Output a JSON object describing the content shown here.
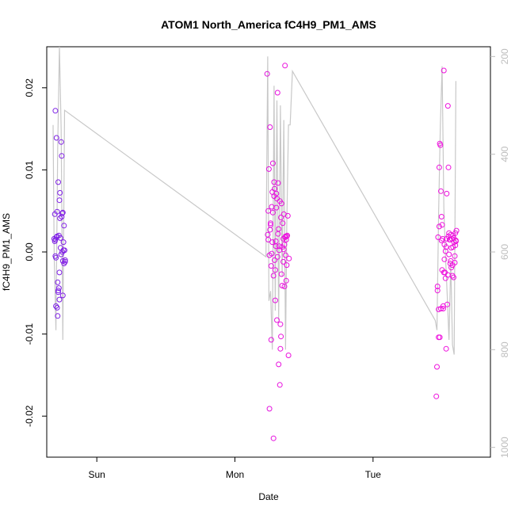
{
  "chart_data": {
    "type": "scatter",
    "title": "ATOM1 North_America fC4H9_PM1_AMS",
    "xlabel": "Date",
    "ylabel": "fC4H9_PM1_AMS",
    "x_tick_labels": [
      "Sun",
      "Mon",
      "Tue"
    ],
    "x_tick_positions_hours": [
      24,
      48,
      72
    ],
    "xlim_hours": [
      15.3,
      92.4
    ],
    "ylim": [
      -0.025,
      0.025
    ],
    "y_ticks": [
      -0.02,
      -0.01,
      0.0,
      0.01,
      0.02
    ],
    "y2_ticks": [
      200,
      400,
      600,
      800,
      1000
    ],
    "y2lim": [
      1020,
      180
    ],
    "grid": false,
    "point_colors": [
      "#7b1fe6",
      "#ee10dd"
    ],
    "line_color": "#c8c8c8",
    "series": [
      {
        "marker": "circle",
        "x_hours": [
          16.6,
          16.7,
          16.8,
          16.9,
          17.0,
          17.1,
          17.2,
          17.3,
          17.4,
          17.5,
          17.6,
          17.7,
          17.8,
          17.9,
          18.0,
          18.1,
          18.2,
          18.3,
          18.4,
          18.5,
          16.7,
          16.9,
          17.1,
          17.3,
          17.5,
          17.7,
          17.9,
          18.1,
          18.3,
          18.5,
          16.8,
          17.0,
          17.2,
          17.4,
          17.6,
          17.8,
          18.0,
          18.2,
          17.1,
          17.5,
          18.1,
          16.8,
          17.3
        ],
        "y": [
          0.0016,
          0.0046,
          0.0172,
          -0.0007,
          0.0139,
          0.0049,
          -0.0037,
          0.0085,
          0.002,
          -0.0025,
          0.0072,
          0.0017,
          0.0134,
          0.0043,
          0.0047,
          0.0048,
          0.0012,
          -0.0014,
          0.0002,
          -0.001,
          0.0013,
          -0.0066,
          0.0019,
          -0.0047,
          0.0063,
          0.0005,
          0.0117,
          -0.0053,
          0.0032,
          -0.0012,
          -0.0005,
          0.0018,
          -0.0078,
          -0.0044,
          0.0041,
          -0.0003,
          0.0,
          0.0002,
          -0.0068,
          -0.0058,
          -0.0011,
          0.0015,
          -0.0049
        ]
      },
      {
        "marker": "circle",
        "x_hours": [
          53.6,
          53.7,
          53.8,
          53.9,
          54.0,
          54.1,
          54.2,
          54.3,
          54.4,
          54.5,
          54.6,
          54.7,
          54.8,
          54.9,
          55.0,
          55.1,
          55.2,
          55.3,
          55.4,
          55.5,
          55.6,
          55.7,
          55.8,
          55.9,
          56.0,
          56.1,
          56.2,
          56.3,
          56.4,
          56.5,
          56.6,
          56.7,
          56.8,
          56.9,
          57.0,
          57.1,
          57.2,
          57.3,
          57.4,
          53.8,
          54.0,
          54.2,
          54.4,
          54.6,
          54.8,
          55.0,
          55.2,
          55.4,
          55.6,
          55.8,
          56.0,
          56.2,
          56.4,
          56.6,
          56.8,
          57.0,
          54.1,
          54.5,
          54.9,
          55.3,
          55.7,
          56.1,
          56.5,
          56.9,
          54.3,
          55.1,
          55.9,
          56.7,
          54.7,
          55.5
        ],
        "y": [
          0.0217,
          0.0021,
          0.005,
          0.0101,
          -0.0191,
          0.0152,
          0.0035,
          -0.0107,
          0.0055,
          0.0073,
          0.0108,
          -0.0227,
          0.0085,
          0.0077,
          -0.0059,
          0.0013,
          0.0071,
          -0.0083,
          0.0194,
          0.0084,
          -0.0137,
          0.0002,
          -0.0162,
          -0.0118,
          -0.0103,
          0.0059,
          0.0006,
          0.0035,
          -0.0012,
          0.0003,
          -0.0042,
          0.0227,
          0.0019,
          0.0015,
          -0.0016,
          0.002,
          0.0044,
          -0.0126,
          -0.0008,
          0.0015,
          -0.0004,
          0.0033,
          -0.0002,
          0.0048,
          0.0068,
          -0.0022,
          0.0054,
          -0.0006,
          0.0028,
          0.0062,
          0.0042,
          -0.0041,
          0.0016,
          0.0009,
          -0.0004,
          0.0019,
          0.0027,
          0.0012,
          -0.001,
          0.0065,
          0.0007,
          -0.0027,
          0.0046,
          -0.0035,
          -0.0017,
          0.0007,
          -0.0088,
          0.0018,
          -0.0029,
          0.0022
        ]
      },
      {
        "marker": "circle",
        "x_hours": [
          83.0,
          83.1,
          83.2,
          83.3,
          83.4,
          83.5,
          83.6,
          83.7,
          83.8,
          83.9,
          84.0,
          84.1,
          84.2,
          84.3,
          84.4,
          84.5,
          84.6,
          84.7,
          84.8,
          84.9,
          85.0,
          85.1,
          85.2,
          85.3,
          85.4,
          85.5,
          85.6,
          85.7,
          85.8,
          85.9,
          86.0,
          86.1,
          86.2,
          86.3,
          86.4,
          86.5,
          83.2,
          83.4,
          83.6,
          83.8,
          84.0,
          84.2,
          84.4,
          84.6,
          84.8,
          85.0,
          85.2,
          85.4,
          85.6,
          85.8,
          86.0,
          86.2,
          86.4,
          83.5,
          83.9,
          84.3,
          84.7,
          85.1,
          85.5,
          85.9,
          86.3
        ],
        "y": [
          -0.0176,
          -0.014,
          -0.0047,
          0.0018,
          -0.0104,
          0.0103,
          0.0132,
          0.013,
          0.0074,
          0.0043,
          -0.0022,
          0.0016,
          -0.0069,
          0.0221,
          0.0009,
          -0.0025,
          0.0001,
          -0.0118,
          0.0071,
          -0.0064,
          0.0178,
          0.0103,
          0.0023,
          0.0015,
          -0.0014,
          0.0021,
          -0.0019,
          0.0016,
          -0.0029,
          0.0006,
          -0.0031,
          0.0012,
          -0.0013,
          0.0023,
          0.0014,
          0.0026,
          -0.0042,
          -0.007,
          -0.0104,
          -0.0069,
          0.0033,
          -0.0066,
          -0.0009,
          -0.0032,
          0.0016,
          -0.0028,
          -0.0003,
          0.0015,
          0.0005,
          -0.0016,
          0.0017,
          -0.0005,
          0.0013,
          0.0031,
          0.0014,
          -0.0025,
          0.0006,
          0.0019,
          -0.0011,
          0.002,
          0.0008
        ]
      }
    ],
    "line_series": {
      "x_hours": [
        16.4,
        16.6,
        16.9,
        17.2,
        17.5,
        17.8,
        18.1,
        18.4,
        53.4,
        53.7,
        53.9,
        54.2,
        54.5,
        54.8,
        55.0,
        55.3,
        55.6,
        55.9,
        56.2,
        56.5,
        56.8,
        57.0,
        57.3,
        57.6,
        58.0,
        82.8,
        83.1,
        83.4,
        83.7,
        84.0,
        84.3,
        84.6,
        84.9,
        85.2,
        85.5,
        85.8,
        86.1,
        86.4
      ],
      "y2": [
        340,
        610,
        760,
        390,
        80,
        350,
        780,
        310,
        610,
        200,
        700,
        680,
        800,
        260,
        720,
        290,
        740,
        300,
        650,
        330,
        800,
        550,
        340,
        340,
        230,
        740,
        760,
        520,
        340,
        220,
        510,
        610,
        690,
        780,
        620,
        790,
        810,
        250
      ]
    }
  }
}
